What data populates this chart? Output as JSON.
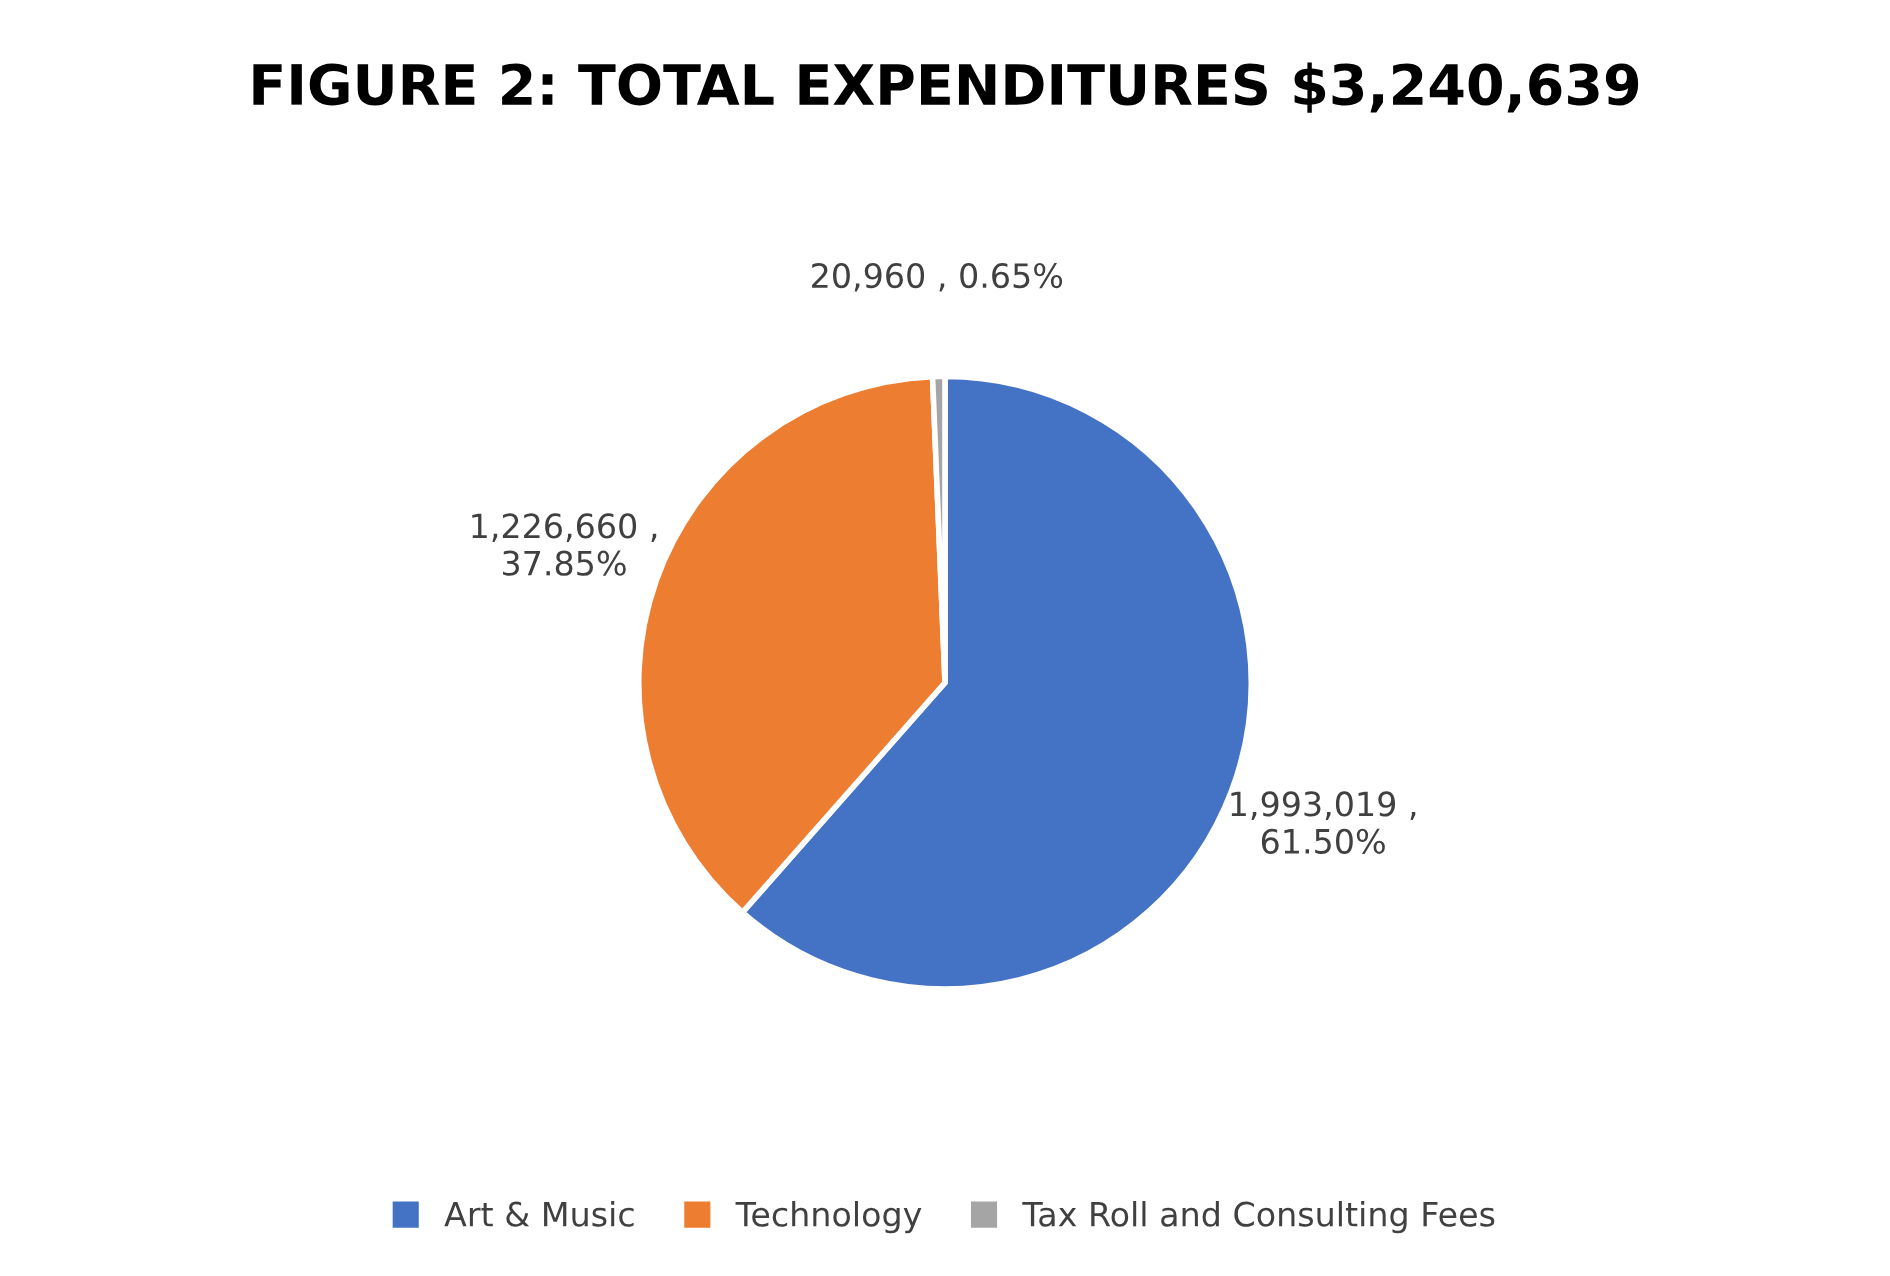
{
  "chart_data": {
    "type": "pie",
    "title": "FIGURE 2: TOTAL EXPENDITURES $3,240,639",
    "categories": [
      "Art & Music",
      "Technology",
      "Tax Roll and Consulting Fees"
    ],
    "values": [
      1993019,
      1226660,
      20960
    ],
    "colors": [
      "#4472c4",
      "#ed7d31",
      "#a5a5a5"
    ],
    "value_labels": [
      "1,993,019 ,\n61.50%",
      "1,226,660 ,\n37.85%",
      "20,960 , 0.65%"
    ],
    "legend": "bottom"
  }
}
